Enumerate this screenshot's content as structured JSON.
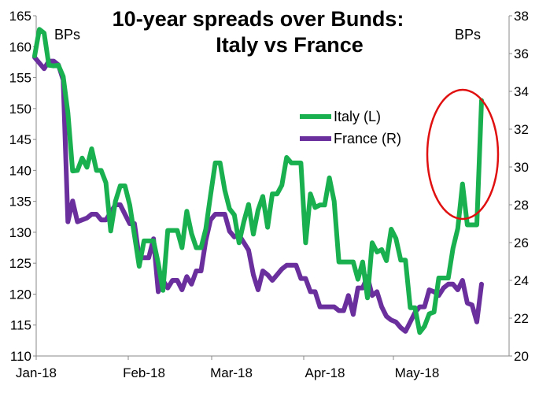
{
  "chart_data": {
    "type": "line",
    "title_line1": "10-year spreads over Bunds:",
    "title_line2": "Italy vs France",
    "left_unit": "BPs",
    "right_unit": "BPs",
    "x_ticks": [
      "Jan-18",
      "Feb-18",
      "Mar-18",
      "Apr-18",
      "May-18"
    ],
    "y_left": {
      "min": 110,
      "max": 165,
      "ticks": [
        "110",
        "115",
        "120",
        "125",
        "130",
        "135",
        "140",
        "145",
        "150",
        "155",
        "160",
        "165"
      ]
    },
    "y_right": {
      "min": 20,
      "max": 38,
      "ticks": [
        "20",
        "22",
        "24",
        "26",
        "28",
        "30",
        "32",
        "34",
        "36",
        "38"
      ]
    },
    "grid": false,
    "legend_position": "center-right",
    "annotation": "red ellipse highlighting the late-May spike in Italy's spread",
    "series": [
      {
        "name": "Italy (L)",
        "axis": "left",
        "color": "#19b050",
        "values": [
          158.5,
          162.8,
          162.2,
          157,
          156.9,
          157,
          155.2,
          149.3,
          139.9,
          140,
          142,
          140.5,
          143.5,
          140,
          140,
          138,
          130.2,
          135,
          137.5,
          137.5,
          134.4,
          129.5,
          124.5,
          128.6,
          128.6,
          128.6,
          125,
          120.6,
          130.3,
          130.3,
          130.3,
          127.5,
          133.4,
          129.8,
          127.5,
          127.5,
          130.5,
          136,
          141.2,
          141.2,
          136.8,
          133.8,
          132.8,
          128.3,
          131.7,
          134.5,
          129.7,
          133.6,
          135.8,
          130.8,
          136.2,
          136.2,
          137.6,
          142.1,
          141.2,
          141.2,
          141.2,
          128.3,
          136.2,
          134,
          134.4,
          134.4,
          138.8,
          135,
          125.2,
          125.2,
          125.2,
          125.2,
          122.4,
          125.2,
          119.4,
          128.3,
          126.8,
          127.2,
          125.4,
          130.5,
          129,
          125.5,
          125.5,
          117.8,
          117.8,
          113.8,
          114.8,
          116.8,
          117.1,
          122.6,
          122.6,
          122.6,
          127.4,
          130.6,
          137.8,
          131.2,
          131.2,
          131.2,
          151.3
        ]
      },
      {
        "name": "France (R)",
        "axis": "right",
        "color": "#6a2f9c",
        "values": [
          35.8,
          35.5,
          35.2,
          35.6,
          35.6,
          35.4,
          34.6,
          27.1,
          28.2,
          27.1,
          27.2,
          27.3,
          27.5,
          27.5,
          27.2,
          27.2,
          27.6,
          28.0,
          28.0,
          27.5,
          27.0,
          27.0,
          25.2,
          25.2,
          25.2,
          26.2,
          23.4,
          24.0,
          23.6,
          24.0,
          24.0,
          23.5,
          24.2,
          23.8,
          24.5,
          24.5,
          26.1,
          27.2,
          27.5,
          27.5,
          27.5,
          26.6,
          26.3,
          26.4,
          26.0,
          25.6,
          24.3,
          23.5,
          24.5,
          24.3,
          24.0,
          24.3,
          24.6,
          24.8,
          24.8,
          24.8,
          24.1,
          24.1,
          23.4,
          23.4,
          22.6,
          22.6,
          22.6,
          22.6,
          22.4,
          22.4,
          23.2,
          22.2,
          23.6,
          23.6,
          24.2,
          23.2,
          23.4,
          22.6,
          22.1,
          21.9,
          21.8,
          21.5,
          21.3,
          21.8,
          22.3,
          22.6,
          22.6,
          23.5,
          23.4,
          23.2,
          23.6,
          23.8,
          23.8,
          23.5,
          24.0,
          22.8,
          22.7,
          21.8,
          23.8
        ]
      }
    ]
  }
}
